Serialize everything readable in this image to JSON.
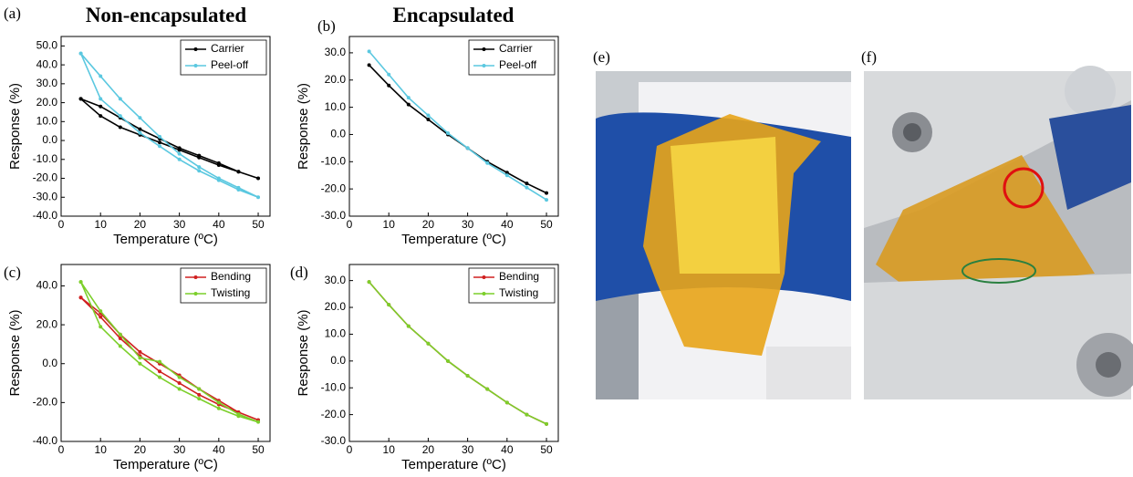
{
  "column_titles": [
    "Non-encapsulated",
    "Encapsulated"
  ],
  "panel_labels": [
    "(a)",
    "(b)",
    "(c)",
    "(d)",
    "(e)",
    "(f)"
  ],
  "chart_data": [
    {
      "type": "line",
      "xlabel": "Temperature (ºC)",
      "ylabel": "Response (%)",
      "xlim": [
        0,
        53
      ],
      "ylim": [
        -40,
        55
      ],
      "xticks": [
        0,
        10,
        20,
        30,
        40,
        50
      ],
      "yticks": [
        {
          "value": -40,
          "label": "-40.0"
        },
        {
          "value": -30,
          "label": "-30.0"
        },
        {
          "value": -20,
          "label": "-20.0"
        },
        {
          "value": -10,
          "label": "-10.0"
        },
        {
          "value": 0,
          "label": "0.0"
        },
        {
          "value": 10,
          "label": "10.0"
        },
        {
          "value": 20,
          "label": "20.0"
        },
        {
          "value": 30,
          "label": "30.0"
        },
        {
          "value": 40,
          "label": "40.0"
        },
        {
          "value": 50,
          "label": "50.0"
        }
      ],
      "legend": "upper right",
      "series": [
        {
          "name": "Carrier",
          "color": "#000000",
          "x": [
            5,
            10,
            15,
            20,
            25,
            30,
            35,
            40,
            45,
            50,
            45,
            40,
            35,
            30,
            25,
            20,
            15,
            10,
            5
          ],
          "values": [
            22,
            13,
            7,
            3,
            -1,
            -5,
            -9,
            -13,
            -16.5,
            -20,
            -16.5,
            -12,
            -8,
            -4,
            1,
            6,
            12,
            18,
            22
          ]
        },
        {
          "name": "Peel-off",
          "color": "#5bc8e0",
          "x": [
            5,
            10,
            15,
            20,
            25,
            30,
            35,
            40,
            45,
            50,
            45,
            40,
            35,
            30,
            25,
            20,
            15,
            10,
            5
          ],
          "values": [
            46,
            22,
            13,
            4,
            -3,
            -10,
            -16,
            -21,
            -26,
            -30,
            -25,
            -20,
            -14,
            -7,
            2,
            12,
            22,
            34,
            46
          ]
        }
      ]
    },
    {
      "type": "line",
      "xlabel": "Temperature (ºC)",
      "ylabel": "Response (%)",
      "xlim": [
        0,
        53
      ],
      "ylim": [
        -30,
        36
      ],
      "xticks": [
        0,
        10,
        20,
        30,
        40,
        50
      ],
      "yticks": [
        {
          "value": -30,
          "label": "-30.0"
        },
        {
          "value": -20,
          "label": "-20.0"
        },
        {
          "value": -10,
          "label": "-10.0"
        },
        {
          "value": 0,
          "label": "0.0"
        },
        {
          "value": 10,
          "label": "10.0"
        },
        {
          "value": 20,
          "label": "20.0"
        },
        {
          "value": 30,
          "label": "30.0"
        }
      ],
      "legend": "upper right",
      "series": [
        {
          "name": "Carrier",
          "color": "#000000",
          "x": [
            5,
            10,
            15,
            20,
            25,
            30,
            35,
            40,
            45,
            50
          ],
          "values": [
            25.5,
            18,
            11,
            5.5,
            0,
            -5,
            -10,
            -14,
            -18,
            -21.5
          ]
        },
        {
          "name": "Peel-off",
          "color": "#5bc8e0",
          "x": [
            5,
            10,
            15,
            20,
            25,
            30,
            35,
            40,
            45,
            50
          ],
          "values": [
            30.5,
            22,
            13.5,
            7,
            0.5,
            -5,
            -10.5,
            -15,
            -19.5,
            -24
          ]
        }
      ]
    },
    {
      "type": "line",
      "xlabel": "Temperature (ºC)",
      "ylabel": "Response (%)",
      "xlim": [
        0,
        53
      ],
      "ylim": [
        -40,
        51
      ],
      "xticks": [
        0,
        10,
        20,
        30,
        40,
        50
      ],
      "yticks": [
        {
          "value": -40,
          "label": "-40.0"
        },
        {
          "value": -20,
          "label": "-20.0"
        },
        {
          "value": 0,
          "label": "0.0"
        },
        {
          "value": 20,
          "label": "20.0"
        },
        {
          "value": 40,
          "label": "40.0"
        }
      ],
      "legend": "upper right",
      "series": [
        {
          "name": "Bending",
          "color": "#d02020",
          "x": [
            5,
            10,
            15,
            20,
            25,
            30,
            35,
            40,
            45,
            50,
            45,
            40,
            35,
            30,
            25,
            20,
            15,
            10,
            5
          ],
          "values": [
            34,
            24,
            13,
            4,
            -4,
            -10,
            -16,
            -21,
            -25,
            -29,
            -25,
            -19,
            -13,
            -6,
            0,
            6,
            15,
            26,
            34
          ]
        },
        {
          "name": "Twisting",
          "color": "#7ccf2a",
          "x": [
            5,
            10,
            15,
            20,
            25,
            30,
            35,
            40,
            45,
            50,
            45,
            40,
            35,
            30,
            25,
            20,
            15,
            10,
            5
          ],
          "values": [
            42,
            19,
            9,
            0,
            -7,
            -13,
            -18,
            -23,
            -27,
            -30,
            -26,
            -20,
            -13,
            -7,
            1,
            3,
            15,
            27,
            42
          ]
        }
      ]
    },
    {
      "type": "line",
      "xlabel": "Temperature (ºC)",
      "ylabel": "Response (%)",
      "xlim": [
        0,
        53
      ],
      "ylim": [
        -30,
        36
      ],
      "xticks": [
        0,
        10,
        20,
        30,
        40,
        50
      ],
      "yticks": [
        {
          "value": -30,
          "label": "-30.0"
        },
        {
          "value": -20,
          "label": "-20.0"
        },
        {
          "value": -10,
          "label": "-10.0"
        },
        {
          "value": 0,
          "label": "0.0"
        },
        {
          "value": 10,
          "label": "10.0"
        },
        {
          "value": 20,
          "label": "20.0"
        },
        {
          "value": 30,
          "label": "30.0"
        }
      ],
      "legend": "upper right",
      "series": [
        {
          "name": "Bending",
          "color": "#d02020",
          "x": [
            5,
            10,
            15,
            20,
            25,
            30,
            35,
            40,
            45,
            50
          ],
          "values": [
            29.5,
            21,
            13,
            6.5,
            0,
            -5.5,
            -10.5,
            -15.5,
            -20,
            -23.5
          ]
        },
        {
          "name": "Twisting",
          "color": "#7ccf2a",
          "x": [
            5,
            10,
            15,
            20,
            25,
            30,
            35,
            40,
            45,
            50
          ],
          "values": [
            29.5,
            21,
            13,
            6.5,
            0,
            -5.5,
            -10.5,
            -15.5,
            -20,
            -23.5
          ]
        }
      ]
    }
  ]
}
